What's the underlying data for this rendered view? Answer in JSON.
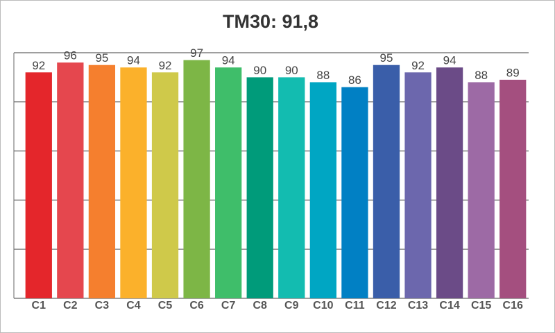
{
  "chart_data": {
    "type": "bar",
    "title": "TM30: 91,8",
    "categories": [
      "C1",
      "C2",
      "C3",
      "C4",
      "C5",
      "C6",
      "C7",
      "C8",
      "C9",
      "C10",
      "C11",
      "C12",
      "C13",
      "C14",
      "C15",
      "C16"
    ],
    "values": [
      92,
      96,
      95,
      94,
      92,
      97,
      94,
      90,
      90,
      88,
      86,
      95,
      92,
      94,
      88,
      89
    ],
    "colors": [
      "#e4262b",
      "#e5474e",
      "#f57f2e",
      "#fbb12b",
      "#cfc94a",
      "#7db646",
      "#3fbe6a",
      "#009b7a",
      "#13bcb0",
      "#00a6c3",
      "#0180c4",
      "#3a5ea9",
      "#6c67ad",
      "#6b4b87",
      "#9d6aa5",
      "#a44f7f"
    ],
    "ylim": [
      0,
      100
    ],
    "yticks": [
      0,
      20,
      40,
      60,
      80,
      100
    ],
    "grid": true
  }
}
